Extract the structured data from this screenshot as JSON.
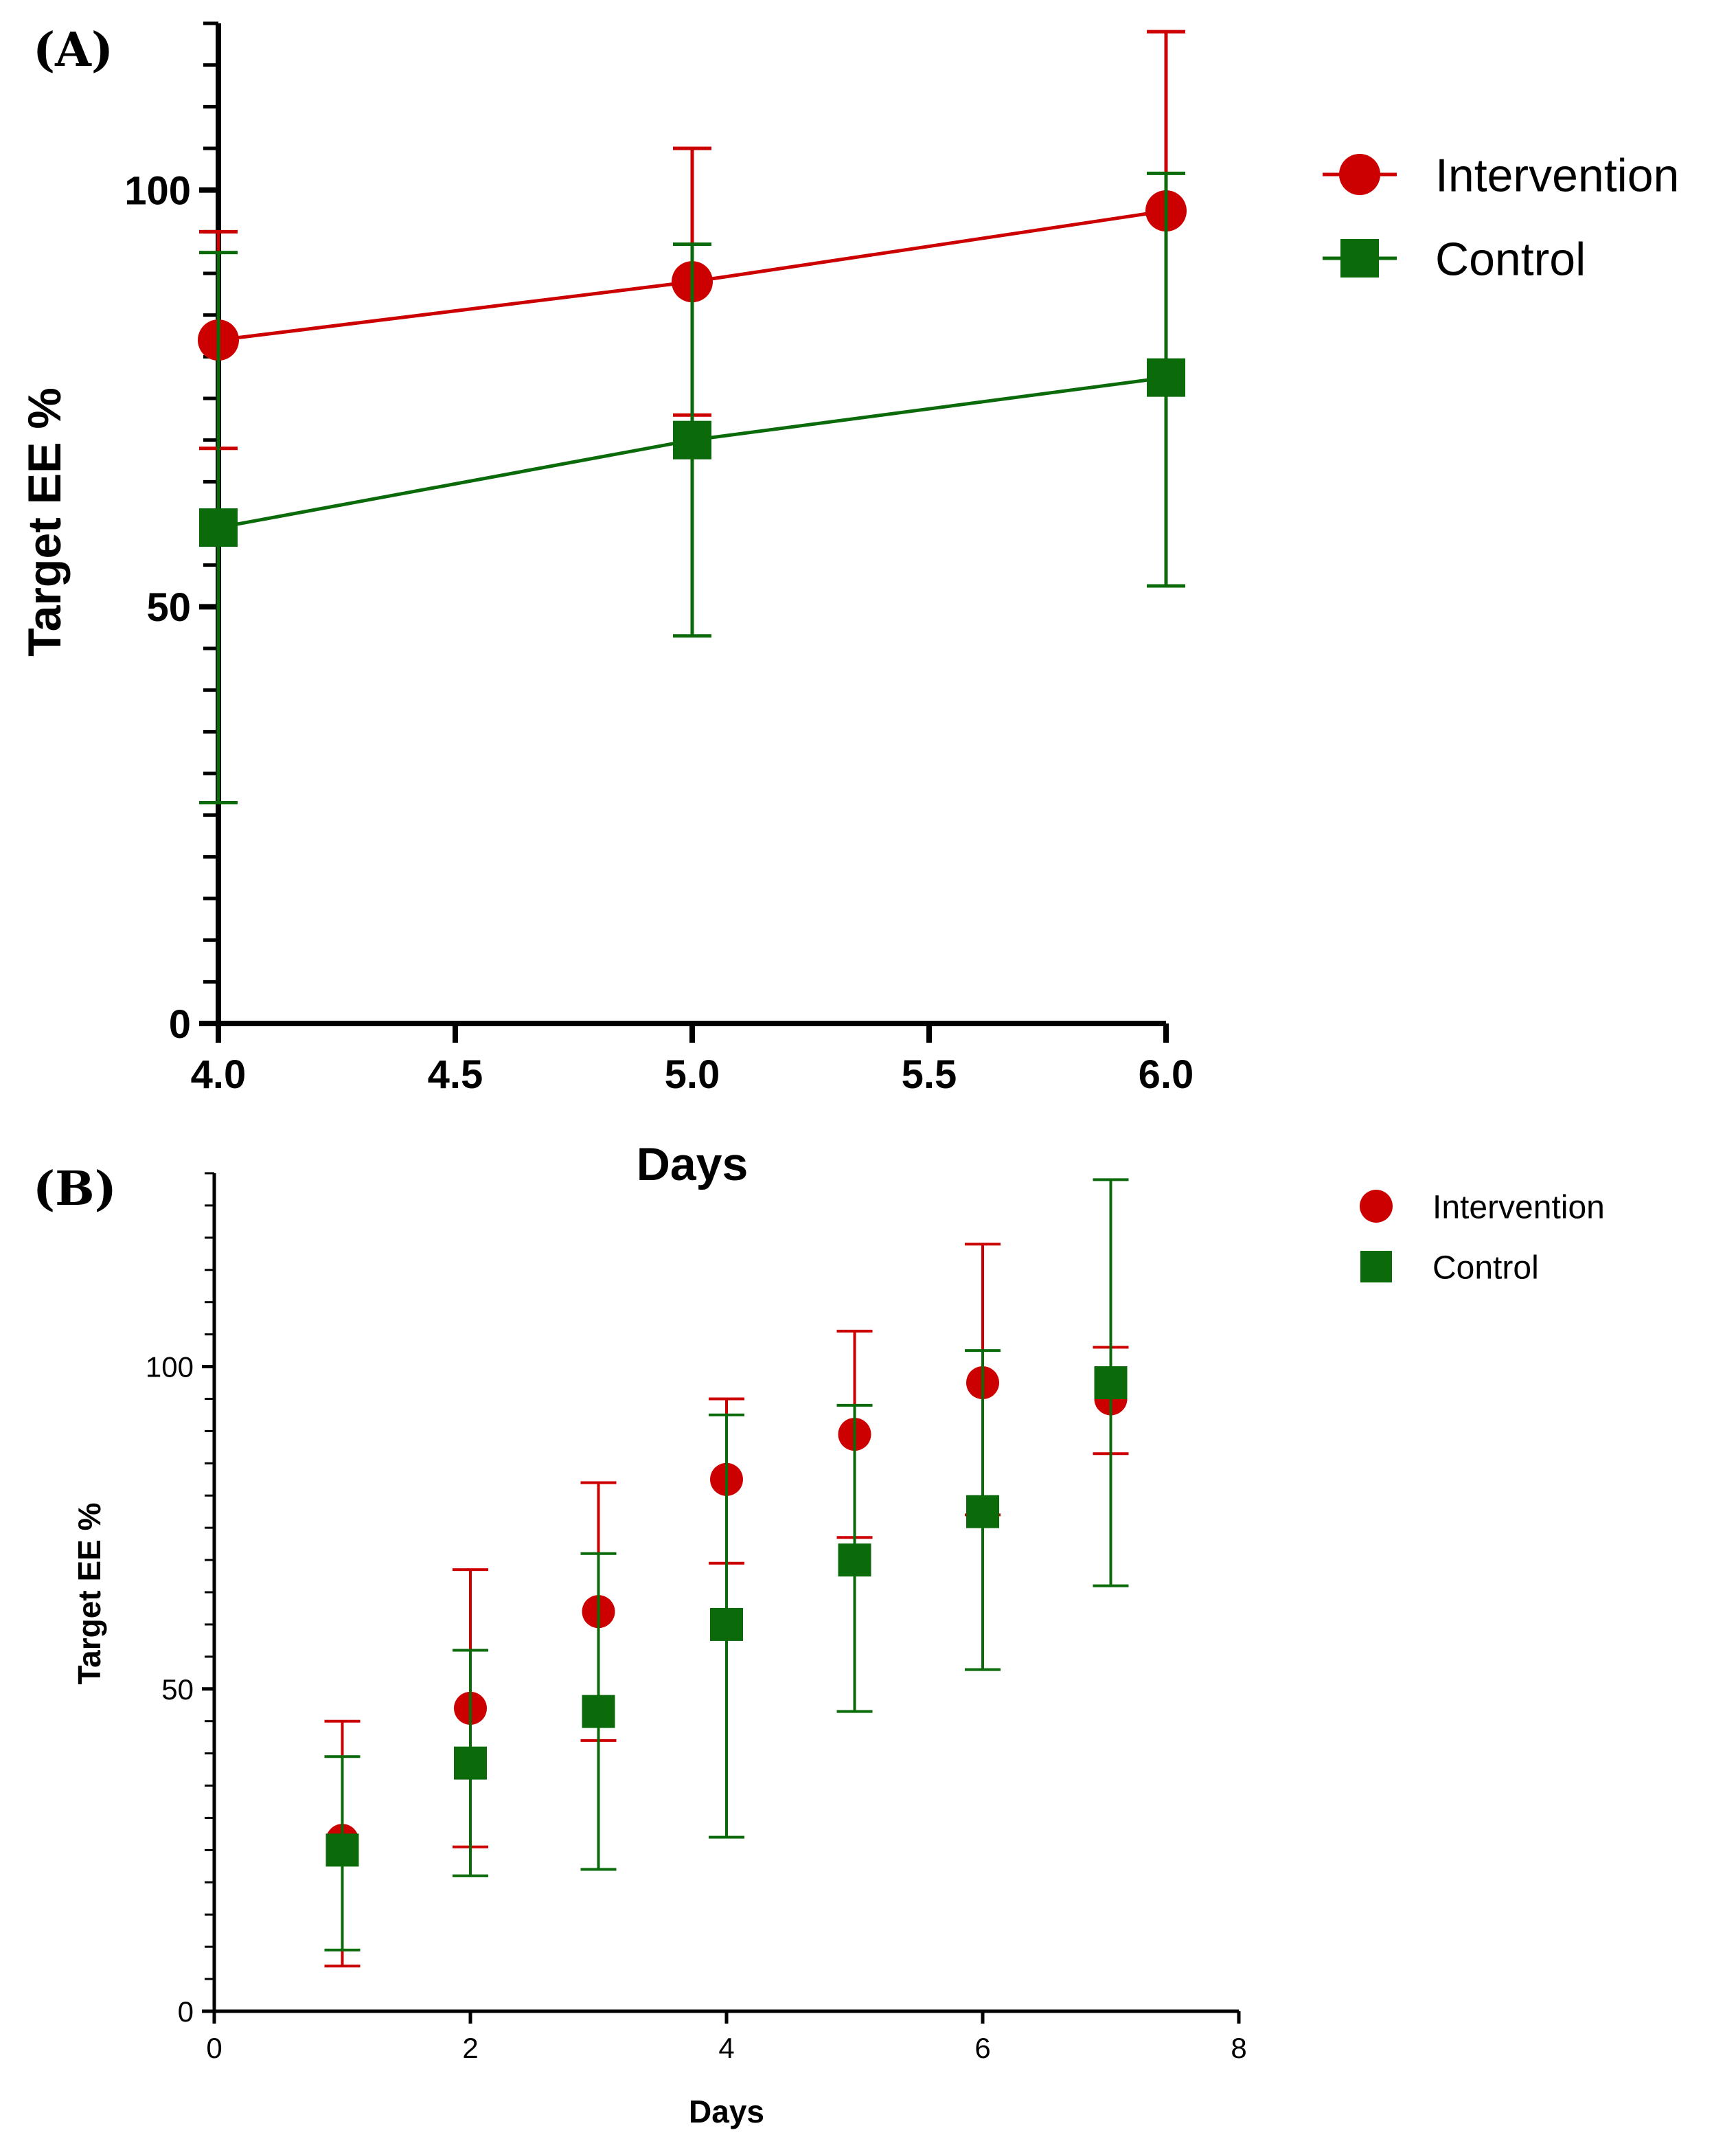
{
  "colors": {
    "intervention": "#cc0000",
    "control": "#0b6b0b",
    "axis": "#000000"
  },
  "chart_data": [
    {
      "panel": "(A)",
      "type": "line",
      "title": "",
      "xlabel": "Days",
      "ylabel": "Target EE %",
      "xlim": [
        4.0,
        6.0
      ],
      "ylim": [
        0,
        120
      ],
      "xticks": [
        "4.0",
        "4.5",
        "5.0",
        "5.5",
        "6.0"
      ],
      "xtick_values": [
        4.0,
        4.5,
        5.0,
        5.5,
        6.0
      ],
      "yticks": [
        "0",
        "50",
        "100"
      ],
      "ytick_values": [
        0,
        50,
        100
      ],
      "legend_position": "top-right",
      "series": [
        {
          "name": "Intervention",
          "marker": "circle",
          "x": [
            4,
            5,
            6
          ],
          "values": [
            82,
            89,
            97.5
          ],
          "err_low": [
            69,
            73,
            76
          ],
          "err_high": [
            95,
            105,
            119
          ]
        },
        {
          "name": "Control",
          "marker": "square",
          "x": [
            4,
            5,
            6
          ],
          "values": [
            59.5,
            70,
            77.5
          ],
          "err_low": [
            26.5,
            46.5,
            52.5
          ],
          "err_high": [
            92.5,
            93.5,
            102
          ]
        }
      ]
    },
    {
      "panel": "(B)",
      "type": "scatter",
      "title": "",
      "xlabel": "Days",
      "ylabel": "Target EE %",
      "xlim": [
        0,
        8
      ],
      "ylim": [
        0,
        130
      ],
      "xticks": [
        "0",
        "2",
        "4",
        "6",
        "8"
      ],
      "xtick_values": [
        0,
        2,
        4,
        6,
        8
      ],
      "yticks": [
        "0",
        "50",
        "100"
      ],
      "ytick_values": [
        0,
        50,
        100
      ],
      "legend_position": "top-right",
      "series": [
        {
          "name": "Intervention",
          "marker": "circle",
          "x": [
            1,
            2,
            3,
            4,
            5,
            6,
            7
          ],
          "values": [
            26.5,
            47,
            62,
            82.5,
            89.5,
            97.5,
            95
          ],
          "err_low": [
            7,
            25.5,
            42,
            69.5,
            73.5,
            77,
            86.5
          ],
          "err_high": [
            45,
            68.5,
            82,
            95,
            105.5,
            119,
            103
          ]
        },
        {
          "name": "Control",
          "marker": "square",
          "x": [
            1,
            2,
            3,
            4,
            5,
            6,
            7
          ],
          "values": [
            25,
            38.5,
            46.5,
            60,
            70,
            77.5,
            97.5
          ],
          "err_low": [
            9.5,
            21,
            22,
            27,
            46.5,
            53,
            66
          ],
          "err_high": [
            39.5,
            56,
            71,
            92.5,
            94,
            102.5,
            129
          ]
        }
      ]
    }
  ]
}
